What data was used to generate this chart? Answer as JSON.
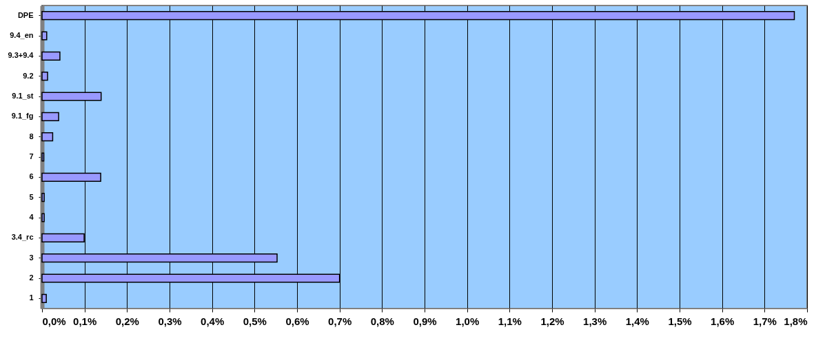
{
  "chart_data": {
    "type": "bar",
    "orientation": "horizontal",
    "categories": [
      "DPE",
      "9.4_en",
      "9.3+9.4",
      "9.2",
      "9.1_st",
      "9.1_fg",
      "8",
      "7",
      "6",
      "5",
      "4",
      "3.4_rc",
      "3",
      "2",
      "1"
    ],
    "values": [
      1.77,
      0.011,
      0.042,
      0.013,
      0.139,
      0.039,
      0.025,
      0.004,
      0.138,
      0.005,
      0.005,
      0.099,
      0.553,
      0.7,
      0.01
    ],
    "color": "#9999ff",
    "xlim": [
      0,
      1.8
    ],
    "xticks": [
      {
        "value": 0,
        "label": "0,0%"
      },
      {
        "value": 0.1,
        "label": "0,1%"
      },
      {
        "value": 0.2,
        "label": "0,2%"
      },
      {
        "value": 0.3,
        "label": "0,3%"
      },
      {
        "value": 0.4,
        "label": "0,4%"
      },
      {
        "value": 0.5,
        "label": "0,5%"
      },
      {
        "value": 0.6,
        "label": "0,6%"
      },
      {
        "value": 0.7,
        "label": "0,7%"
      },
      {
        "value": 0.8,
        "label": "0,8%"
      },
      {
        "value": 0.9,
        "label": "0,9%"
      },
      {
        "value": 1.0,
        "label": "1,0%"
      },
      {
        "value": 1.1,
        "label": "1,1%"
      },
      {
        "value": 1.2,
        "label": "1,2%"
      },
      {
        "value": 1.3,
        "label": "1,3%"
      },
      {
        "value": 1.4,
        "label": "1,4%"
      },
      {
        "value": 1.5,
        "label": "1,5%"
      },
      {
        "value": 1.6,
        "label": "1,6%"
      },
      {
        "value": 1.7,
        "label": "1,7%"
      },
      {
        "value": 1.8,
        "label": "1,8%"
      }
    ],
    "grid": "x"
  }
}
